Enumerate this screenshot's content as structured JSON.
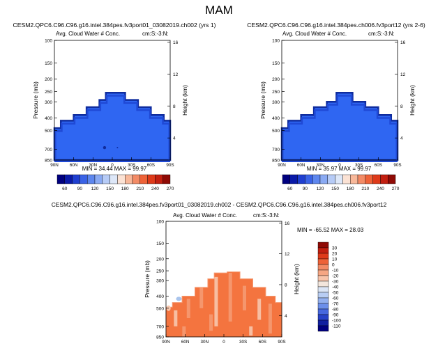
{
  "page_title": "MAM",
  "colors": {
    "fill_panel": "#2f66f2",
    "fill_diff": "#f4743f",
    "edge_dark": "#0f2c9e",
    "edge_mid": "#1f49d6",
    "diff_light": "#f59a72",
    "diff_pale": "#f7c7ad",
    "diff_blue": "#a9c4ec",
    "frame": "#000000"
  },
  "chart_data": [
    {
      "id": "panel1",
      "type": "contour",
      "title": "CESM2.QPC6.C96.C96.g16.intel.384pes.fv3port01_03082019.ch002 (yrs 1)",
      "left_label": "Avg. Cloud Water # Conc.",
      "right_label": "cm:S:-3:N:",
      "ylabel": "Pressure (mb)",
      "ylabel_right": "Height (km)",
      "x_ticks": [
        "90N",
        "60N",
        "30N",
        "0",
        "30S",
        "60S",
        "90S"
      ],
      "y_ticks": [
        "100",
        "150",
        "200",
        "250",
        "300",
        "400",
        "500",
        "700",
        "850"
      ],
      "y_ticks_right": [
        "16",
        "12",
        "8",
        "4"
      ],
      "stats": "MIN = 34.44   MAX = 99.97",
      "min": 34.44,
      "max": 99.97,
      "top_profile": [
        [
          -90,
          480
        ],
        [
          -80,
          420
        ],
        [
          -60,
          380
        ],
        [
          -40,
          330
        ],
        [
          -20,
          290
        ],
        [
          -10,
          255
        ],
        [
          10,
          255
        ],
        [
          20,
          290
        ],
        [
          40,
          330
        ],
        [
          60,
          380
        ],
        [
          80,
          420
        ],
        [
          90,
          450
        ]
      ]
    },
    {
      "id": "panel2",
      "type": "contour",
      "title": "CESM2.QPC6.C96.C96.g16.intel.384pes.ch006.fv3port12 (yrs 2-6)",
      "left_label": "Avg. Cloud Water # Conc.",
      "right_label": "cm:S:-3:N:",
      "ylabel": "Pressure (mb)",
      "ylabel_right": "Height (km)",
      "x_ticks": [
        "90N",
        "60N",
        "30N",
        "0",
        "30S",
        "60S",
        "90S"
      ],
      "y_ticks": [
        "100",
        "150",
        "200",
        "250",
        "300",
        "400",
        "500",
        "700",
        "850"
      ],
      "y_ticks_right": [
        "16",
        "12",
        "8",
        "4"
      ],
      "stats": "MIN = 35.97   MAX = 99.97",
      "min": 35.97,
      "max": 99.97,
      "top_profile": [
        [
          -90,
          480
        ],
        [
          -80,
          420
        ],
        [
          -60,
          380
        ],
        [
          -40,
          330
        ],
        [
          -20,
          300
        ],
        [
          -5,
          255
        ],
        [
          5,
          255
        ],
        [
          20,
          300
        ],
        [
          40,
          330
        ],
        [
          60,
          380
        ],
        [
          80,
          420
        ],
        [
          90,
          450
        ]
      ]
    },
    {
      "id": "panel3",
      "type": "contour",
      "title": "CESM2.QPC6.C96.C96.g16.intel.384pes.fv3port01_03082019.ch002 - CESM2.QPC6.C96.C96.g16.intel.384pes.ch006.fv3port12",
      "left_label": "Avg. Cloud Water # Conc.",
      "right_label": "cm:S:-3:N:",
      "ylabel": "Pressure (mb)",
      "ylabel_right": "Height (km)",
      "x_ticks": [
        "90N",
        "60N",
        "30N",
        "0",
        "30S",
        "60S",
        "90S"
      ],
      "y_ticks": [
        "100",
        "150",
        "200",
        "250",
        "300",
        "400",
        "500",
        "700",
        "850"
      ],
      "y_ticks_right": [
        "16",
        "12",
        "8",
        "4"
      ],
      "stats": "MIN = -65.52   MAX = 28.03",
      "min": -65.52,
      "max": 28.03,
      "top_profile": [
        [
          -90,
          490
        ],
        [
          -80,
          450
        ],
        [
          -65,
          400
        ],
        [
          -45,
          340
        ],
        [
          -25,
          290
        ],
        [
          -15,
          260
        ],
        [
          5,
          255
        ],
        [
          25,
          290
        ],
        [
          45,
          340
        ],
        [
          65,
          400
        ],
        [
          80,
          450
        ],
        [
          90,
          470
        ]
      ]
    }
  ],
  "colorbar_shared": {
    "labels": [
      "60",
      "90",
      "120",
      "150",
      "180",
      "210",
      "240",
      "270"
    ],
    "colors": [
      "#00007f",
      "#0a1aa8",
      "#1f3fd0",
      "#3a63e6",
      "#5e87ee",
      "#8aaaf3",
      "#b6cbf6",
      "#dde7f8",
      "#fbe2d4",
      "#f8b89a",
      "#f38b66",
      "#ee6238",
      "#de3a1a",
      "#c21f10",
      "#8f0a05"
    ]
  },
  "colorbar_diff": {
    "labels": [
      "30",
      "20",
      "10",
      "0",
      "-10",
      "-20",
      "-30",
      "-40",
      "-50",
      "-60",
      "-70",
      "-80",
      "-90",
      "-100",
      "-110"
    ],
    "colors": [
      "#8f0a05",
      "#c21f10",
      "#de3a1a",
      "#ee6238",
      "#f38b66",
      "#f6a683",
      "#f8c4aa",
      "#f3e6dc",
      "#dbe5f5",
      "#b8cdf3",
      "#93b0ef",
      "#6c8fea",
      "#4768de",
      "#2742c7",
      "#101fa0",
      "#00007f"
    ]
  }
}
